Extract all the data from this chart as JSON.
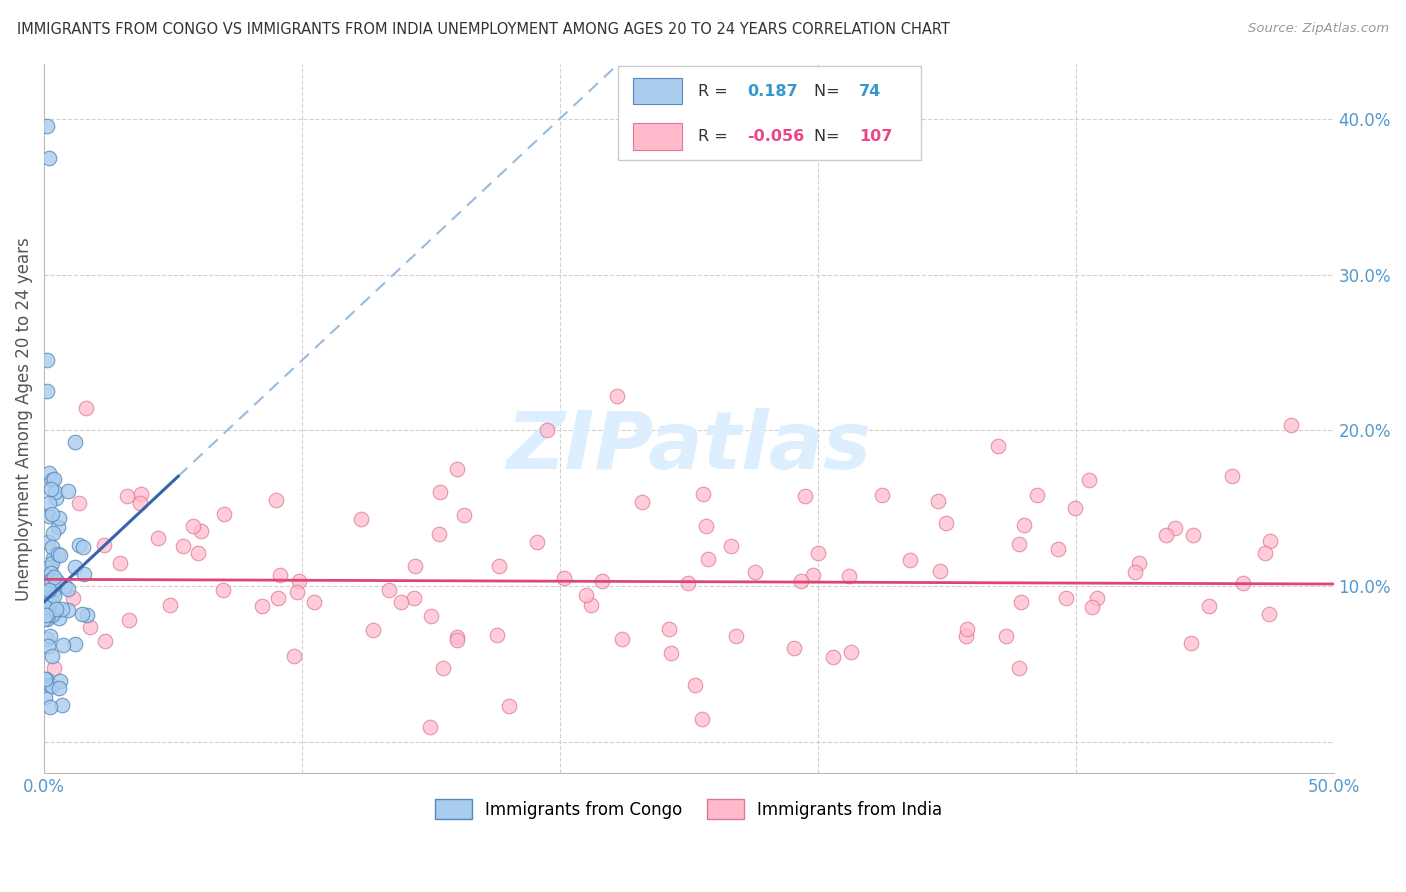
{
  "title": "IMMIGRANTS FROM CONGO VS IMMIGRANTS FROM INDIA UNEMPLOYMENT AMONG AGES 20 TO 24 YEARS CORRELATION CHART",
  "source": "Source: ZipAtlas.com",
  "ylabel": "Unemployment Among Ages 20 to 24 years",
  "xlim": [
    0.0,
    0.5
  ],
  "ylim": [
    -0.02,
    0.435
  ],
  "ytick_vals": [
    0.0,
    0.1,
    0.2,
    0.3,
    0.4
  ],
  "ytick_labels": [
    "",
    "10.0%",
    "20.0%",
    "30.0%",
    "40.0%"
  ],
  "xtick_vals": [
    0.0,
    0.1,
    0.2,
    0.3,
    0.4,
    0.5
  ],
  "xtick_labels": [
    "0.0%",
    "",
    "",
    "",
    "",
    "50.0%"
  ],
  "congo_R": 0.187,
  "congo_N": 74,
  "india_R": -0.056,
  "india_N": 107,
  "congo_color": "#aaccee",
  "congo_edge": "#5588bb",
  "india_color": "#ffbbcc",
  "india_edge": "#dd7799",
  "regression_congo_color": "#3366aa",
  "regression_congo_dashed": "#99bbdd",
  "regression_india_color": "#dd4477",
  "watermark": "ZIPatlas",
  "watermark_color": "#ddeeff",
  "background_color": "#ffffff",
  "grid_color": "#cccccc",
  "title_color": "#333333",
  "tick_color": "#5599cc",
  "legend_border": "#cccccc",
  "congo_legend_color": "#aaccee",
  "congo_legend_edge": "#5588bb",
  "india_legend_color": "#ffbbcc",
  "india_legend_edge": "#dd7799",
  "r_n_color_congo": "#3399cc",
  "r_n_color_india": "#ee4488"
}
